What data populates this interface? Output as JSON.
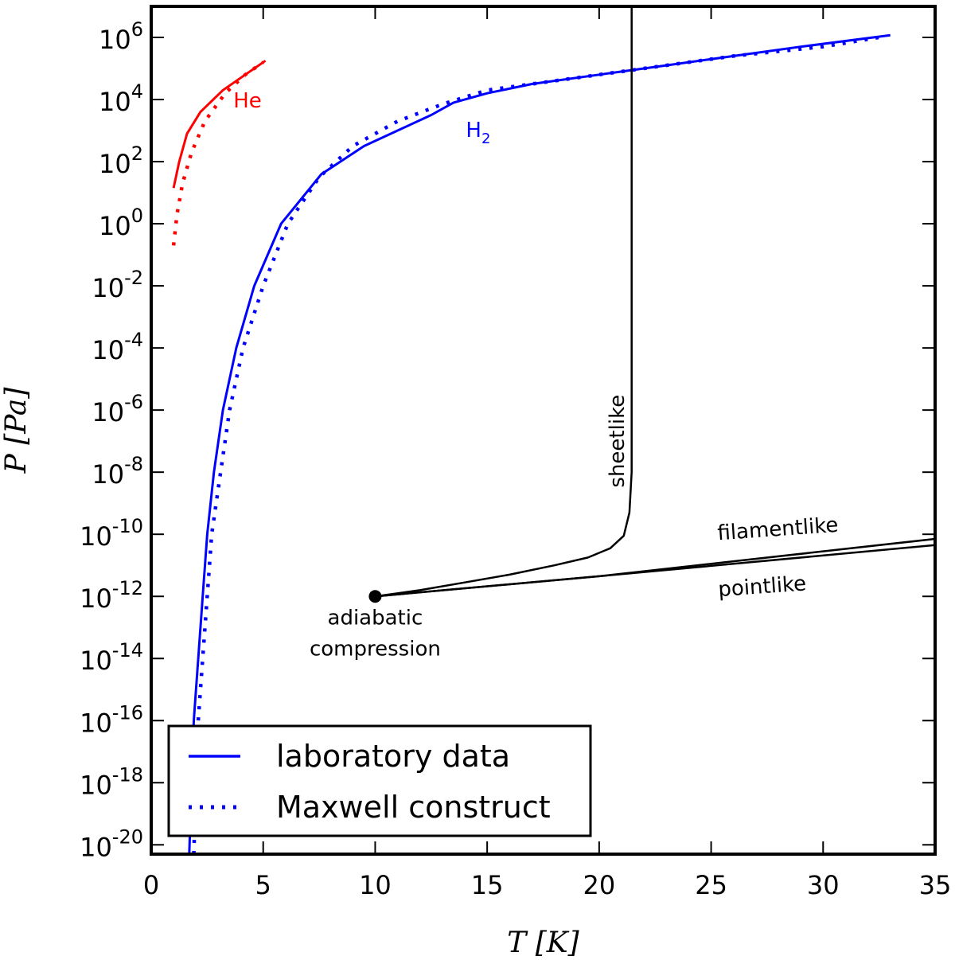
{
  "chart_data": {
    "type": "line",
    "xlabel": "T [K]",
    "ylabel": "P [Pa]",
    "xlim": [
      0,
      35
    ],
    "ylim_log10": [
      -20.3,
      7.0
    ],
    "yscale": "log",
    "x_ticks": [
      0,
      5,
      10,
      15,
      20,
      25,
      30,
      35
    ],
    "y_ticks": [
      {
        "exp": 6,
        "base": "10",
        "sup": "6"
      },
      {
        "exp": 4,
        "base": "10",
        "sup": "4"
      },
      {
        "exp": 2,
        "base": "10",
        "sup": "2"
      },
      {
        "exp": 0,
        "base": "10",
        "sup": "0"
      },
      {
        "exp": -2,
        "base": "10",
        "sup": "-2"
      },
      {
        "exp": -4,
        "base": "10",
        "sup": "-4"
      },
      {
        "exp": -6,
        "base": "10",
        "sup": "-6"
      },
      {
        "exp": -8,
        "base": "10",
        "sup": "-8"
      },
      {
        "exp": -10,
        "base": "10",
        "sup": "-10"
      },
      {
        "exp": -12,
        "base": "10",
        "sup": "-12"
      },
      {
        "exp": -14,
        "base": "10",
        "sup": "-14"
      },
      {
        "exp": -16,
        "base": "10",
        "sup": "-16"
      },
      {
        "exp": -18,
        "base": "10",
        "sup": "-18"
      },
      {
        "exp": -20,
        "base": "10",
        "sup": "-20"
      }
    ],
    "grid": false,
    "colors": {
      "he": "#ff0000",
      "h2": "#0000ff",
      "paths": "#000000"
    },
    "series": [
      {
        "key": "h2-lab",
        "label": "H2",
        "style": "solid",
        "color": "#0000ff",
        "points_T_log10P": [
          [
            1.7,
            -20.3
          ],
          [
            1.8,
            -18.0
          ],
          [
            1.9,
            -16.0
          ],
          [
            2.1,
            -14.0
          ],
          [
            2.3,
            -12.0
          ],
          [
            2.5,
            -10.0
          ],
          [
            2.8,
            -8.0
          ],
          [
            3.2,
            -6.0
          ],
          [
            3.8,
            -4.0
          ],
          [
            4.6,
            -2.0
          ],
          [
            5.8,
            0.0
          ],
          [
            7.6,
            1.6
          ],
          [
            9.5,
            2.5
          ],
          [
            11.0,
            3.0
          ],
          [
            12.5,
            3.5
          ],
          [
            13.5,
            3.9
          ],
          [
            15,
            4.2
          ],
          [
            17,
            4.5
          ],
          [
            20,
            4.8
          ],
          [
            23,
            5.1
          ],
          [
            26,
            5.4
          ],
          [
            29,
            5.7
          ],
          [
            33,
            6.07
          ]
        ]
      },
      {
        "key": "h2-maxwell",
        "label": "H2",
        "style": "dotted",
        "color": "#0000ff",
        "points_T_log10P": [
          [
            1.9,
            -20.3
          ],
          [
            2.0,
            -18.0
          ],
          [
            2.1,
            -16.0
          ],
          [
            2.3,
            -14.0
          ],
          [
            2.5,
            -12.0
          ],
          [
            2.7,
            -10.0
          ],
          [
            3.1,
            -8.0
          ],
          [
            3.5,
            -6.0
          ],
          [
            4.1,
            -4.0
          ],
          [
            5.0,
            -2.0
          ],
          [
            6.1,
            0.0
          ],
          [
            7.5,
            1.5
          ],
          [
            9.0,
            2.5
          ],
          [
            11.0,
            3.3
          ],
          [
            13.0,
            3.85
          ],
          [
            15,
            4.3
          ],
          [
            18,
            4.6
          ],
          [
            22,
            5.0
          ],
          [
            26,
            5.4
          ],
          [
            30,
            5.7
          ],
          [
            32.5,
            6.0
          ]
        ]
      },
      {
        "key": "he-lab",
        "label": "He",
        "style": "solid",
        "color": "#ff0000",
        "points_T_log10P": [
          [
            1.0,
            1.15
          ],
          [
            1.25,
            2.0
          ],
          [
            1.6,
            2.9
          ],
          [
            2.2,
            3.6
          ],
          [
            3.2,
            4.3
          ],
          [
            4.2,
            4.8
          ],
          [
            5.1,
            5.25
          ]
        ]
      },
      {
        "key": "he-maxwell",
        "label": "He",
        "style": "dotted",
        "color": "#ff0000",
        "points_T_log10P": [
          [
            1.0,
            -0.7
          ],
          [
            1.15,
            0.3
          ],
          [
            1.4,
            1.3
          ],
          [
            1.8,
            2.3
          ],
          [
            2.4,
            3.3
          ],
          [
            3.3,
            4.2
          ],
          [
            4.2,
            4.8
          ],
          [
            5.0,
            5.2
          ]
        ]
      },
      {
        "key": "sheetlike",
        "label": "sheetlike",
        "style": "solid",
        "color": "#000000",
        "points_T_log10P": [
          [
            10,
            -12.0
          ],
          [
            12,
            -11.8
          ],
          [
            14,
            -11.55
          ],
          [
            16,
            -11.3
          ],
          [
            18,
            -11.0
          ],
          [
            19.5,
            -10.75
          ],
          [
            20.5,
            -10.45
          ],
          [
            21.1,
            -10.05
          ],
          [
            21.35,
            -9.3
          ],
          [
            21.45,
            -8.0
          ],
          [
            21.45,
            -4.0
          ],
          [
            21.45,
            0.0
          ],
          [
            21.45,
            4.0
          ],
          [
            21.45,
            7.0
          ]
        ]
      },
      {
        "key": "filamentlike",
        "label": "filamentlike",
        "style": "solid",
        "color": "#000000",
        "points_T_log10P": [
          [
            10,
            -12.0
          ],
          [
            20,
            -11.35
          ],
          [
            35,
            -10.15
          ]
        ]
      },
      {
        "key": "pointlike",
        "label": "pointlike",
        "style": "solid",
        "color": "#000000",
        "points_T_log10P": [
          [
            10,
            -12.0
          ],
          [
            20,
            -11.35
          ],
          [
            35,
            -10.35
          ]
        ]
      }
    ],
    "start_point": {
      "T": 10,
      "log10P": -12.0
    },
    "annotations": [
      {
        "key": "he",
        "text": "He",
        "T": 4.3,
        "log10P": 3.75,
        "color": "#ff0000",
        "rotate_deg": 0
      },
      {
        "key": "h2",
        "text": "H",
        "sub": "2",
        "T": 14.6,
        "log10P": 2.8,
        "color": "#0000ff",
        "rotate_deg": 0
      },
      {
        "key": "sheetlike",
        "text": "sheetlike",
        "T": 21.1,
        "log10P": -7.0,
        "color": "#000000",
        "rotate_deg": -90
      },
      {
        "key": "filamentlike",
        "text": "filamentlike",
        "T": 28.0,
        "log10P": -10.05,
        "color": "#000000",
        "rotate_deg": -4
      },
      {
        "key": "pointlike",
        "text": "pointlike",
        "T": 27.3,
        "log10P": -11.9,
        "color": "#000000",
        "rotate_deg": -4
      },
      {
        "key": "adiabatic1",
        "text": "adiabatic",
        "T": 10.0,
        "log10P": -12.9,
        "color": "#000000",
        "rotate_deg": 0
      },
      {
        "key": "adiabatic2",
        "text": "compression",
        "T": 10.0,
        "log10P": -13.9,
        "color": "#000000",
        "rotate_deg": 0
      }
    ],
    "legend": {
      "placement": "lower-left",
      "entries": [
        {
          "label": "laboratory data",
          "style": "solid",
          "color": "#0000ff"
        },
        {
          "label": "Maxwell construct",
          "style": "dotted",
          "color": "#0000ff"
        }
      ]
    }
  }
}
